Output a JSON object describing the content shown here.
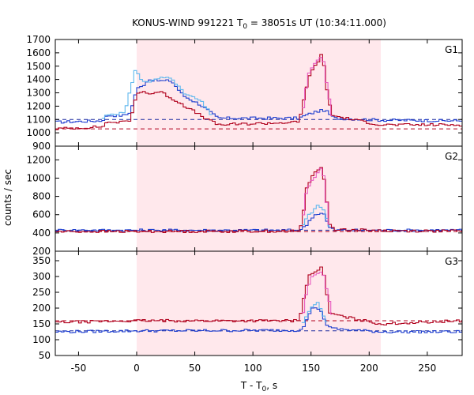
{
  "chart_data": {
    "type": "line",
    "title": {
      "main": "KONUS-WIND 991221 T",
      "sub": "0",
      "rest": " = 38051s UT (10:34:11.000)"
    },
    "xlabel": {
      "main": "T - T",
      "sub": "0",
      "rest": ", s"
    },
    "ylabel": "counts / sec",
    "xlim": [
      -70,
      280
    ],
    "xticks": [
      -50,
      0,
      50,
      100,
      150,
      200,
      250
    ],
    "highlight_interval": [
      0,
      210
    ],
    "colors": {
      "highlight": "#ffe8ec",
      "dark_red": "#b0001c",
      "blue": "#1f3fcf",
      "light_blue": "#5fb7ee",
      "pink": "#e85bbf",
      "dark_blue": "#1b2aa0"
    },
    "panels": [
      {
        "label": "G1",
        "ylim": [
          900,
          1700
        ],
        "yticks": [
          900,
          1000,
          1100,
          1200,
          1300,
          1400,
          1500,
          1600,
          1700
        ],
        "background_levels": [
          {
            "series": "blue",
            "value": 1100
          },
          {
            "series": "dark_red",
            "value": 1030
          }
        ],
        "series": [
          {
            "color": "blue",
            "anchors": [
              [
                -70,
                1080
              ],
              [
                -30,
                1090
              ],
              [
                -25,
                1130
              ],
              [
                -10,
                1130
              ],
              [
                -5,
                1160
              ],
              [
                0,
                1330
              ],
              [
                5,
                1350
              ],
              [
                10,
                1400
              ],
              [
                20,
                1390
              ],
              [
                30,
                1390
              ],
              [
                40,
                1280
              ],
              [
                55,
                1210
              ],
              [
                70,
                1110
              ],
              [
                140,
                1110
              ],
              [
                145,
                1130
              ],
              [
                155,
                1160
              ],
              [
                162,
                1170
              ],
              [
                170,
                1110
              ],
              [
                210,
                1095
              ],
              [
                280,
                1090
              ]
            ]
          },
          {
            "color": "dark_red",
            "anchors": [
              [
                -70,
                1030
              ],
              [
                -30,
                1045
              ],
              [
                -25,
                1080
              ],
              [
                -10,
                1080
              ],
              [
                -5,
                1100
              ],
              [
                0,
                1290
              ],
              [
                5,
                1320
              ],
              [
                10,
                1290
              ],
              [
                20,
                1310
              ],
              [
                30,
                1260
              ],
              [
                40,
                1210
              ],
              [
                55,
                1130
              ],
              [
                70,
                1060
              ],
              [
                140,
                1080
              ],
              [
                145,
                1300
              ],
              [
                148,
                1420
              ],
              [
                155,
                1520
              ],
              [
                160,
                1600
              ],
              [
                163,
                1360
              ],
              [
                168,
                1130
              ],
              [
                210,
                1060
              ],
              [
                280,
                1060
              ]
            ]
          },
          {
            "color": "light_blue",
            "anchors": [
              [
                -30,
                1100
              ],
              [
                -25,
                1140
              ],
              [
                -10,
                1150
              ],
              [
                0,
                1520
              ],
              [
                2,
                1400
              ],
              [
                10,
                1380
              ],
              [
                20,
                1410
              ],
              [
                30,
                1420
              ],
              [
                40,
                1300
              ],
              [
                55,
                1240
              ],
              [
                65,
                1130
              ]
            ]
          },
          {
            "color": "pink",
            "anchors": [
              [
                142,
                1100
              ],
              [
                145,
                1300
              ],
              [
                148,
                1440
              ],
              [
                155,
                1540
              ],
              [
                160,
                1580
              ],
              [
                163,
                1390
              ],
              [
                168,
                1130
              ]
            ]
          }
        ]
      },
      {
        "label": "G2",
        "ylim": [
          200,
          1350
        ],
        "yticks": [
          200,
          400,
          600,
          800,
          1000,
          1200
        ],
        "background_levels": [
          {
            "series": "blue",
            "value": 430
          },
          {
            "series": "dark_red",
            "value": 415
          }
        ],
        "series": [
          {
            "color": "blue",
            "anchors": [
              [
                -70,
                430
              ],
              [
                140,
                430
              ],
              [
                145,
                470
              ],
              [
                148,
                520
              ],
              [
                152,
                590
              ],
              [
                158,
                620
              ],
              [
                162,
                600
              ],
              [
                165,
                470
              ],
              [
                170,
                430
              ],
              [
                280,
                430
              ]
            ]
          },
          {
            "color": "dark_red",
            "anchors": [
              [
                -70,
                415
              ],
              [
                140,
                420
              ],
              [
                143,
                560
              ],
              [
                146,
                880
              ],
              [
                150,
                1000
              ],
              [
                155,
                1090
              ],
              [
                160,
                1130
              ],
              [
                163,
                800
              ],
              [
                166,
                500
              ],
              [
                170,
                440
              ],
              [
                210,
                425
              ],
              [
                280,
                420
              ]
            ]
          },
          {
            "color": "light_blue",
            "anchors": [
              [
                142,
                450
              ],
              [
                146,
                560
              ],
              [
                150,
                620
              ],
              [
                155,
                690
              ],
              [
                160,
                690
              ],
              [
                163,
                560
              ],
              [
                166,
                470
              ]
            ]
          },
          {
            "color": "pink",
            "anchors": [
              [
                142,
                460
              ],
              [
                146,
                860
              ],
              [
                150,
                960
              ],
              [
                155,
                1050
              ],
              [
                160,
                1120
              ],
              [
                163,
                760
              ],
              [
                166,
                480
              ]
            ]
          }
        ]
      },
      {
        "label": "G3",
        "ylim": [
          50,
          380
        ],
        "yticks": [
          50,
          100,
          150,
          200,
          250,
          300,
          350
        ],
        "background_levels": [
          {
            "series": "blue",
            "value": 128
          },
          {
            "series": "dark_red",
            "value": 160
          }
        ],
        "series": [
          {
            "color": "blue",
            "anchors": [
              [
                -70,
                125
              ],
              [
                0,
                128
              ],
              [
                140,
                130
              ],
              [
                145,
                150
              ],
              [
                150,
                195
              ],
              [
                155,
                205
              ],
              [
                160,
                180
              ],
              [
                163,
                150
              ],
              [
                168,
                135
              ],
              [
                210,
                125
              ],
              [
                280,
                125
              ]
            ]
          },
          {
            "color": "dark_red",
            "anchors": [
              [
                -70,
                155
              ],
              [
                0,
                160
              ],
              [
                140,
                160
              ],
              [
                144,
                240
              ],
              [
                148,
                300
              ],
              [
                155,
                320
              ],
              [
                160,
                330
              ],
              [
                163,
                260
              ],
              [
                166,
                185
              ],
              [
                175,
                175
              ],
              [
                210,
                150
              ],
              [
                280,
                160
              ]
            ]
          },
          {
            "color": "light_blue",
            "anchors": [
              [
                142,
                140
              ],
              [
                146,
                175
              ],
              [
                150,
                200
              ],
              [
                156,
                215
              ],
              [
                160,
                185
              ],
              [
                164,
                150
              ]
            ]
          },
          {
            "color": "pink",
            "anchors": [
              [
                142,
                160
              ],
              [
                146,
                250
              ],
              [
                150,
                300
              ],
              [
                156,
                310
              ],
              [
                160,
                320
              ],
              [
                164,
                250
              ],
              [
                168,
                180
              ]
            ]
          }
        ]
      }
    ]
  }
}
